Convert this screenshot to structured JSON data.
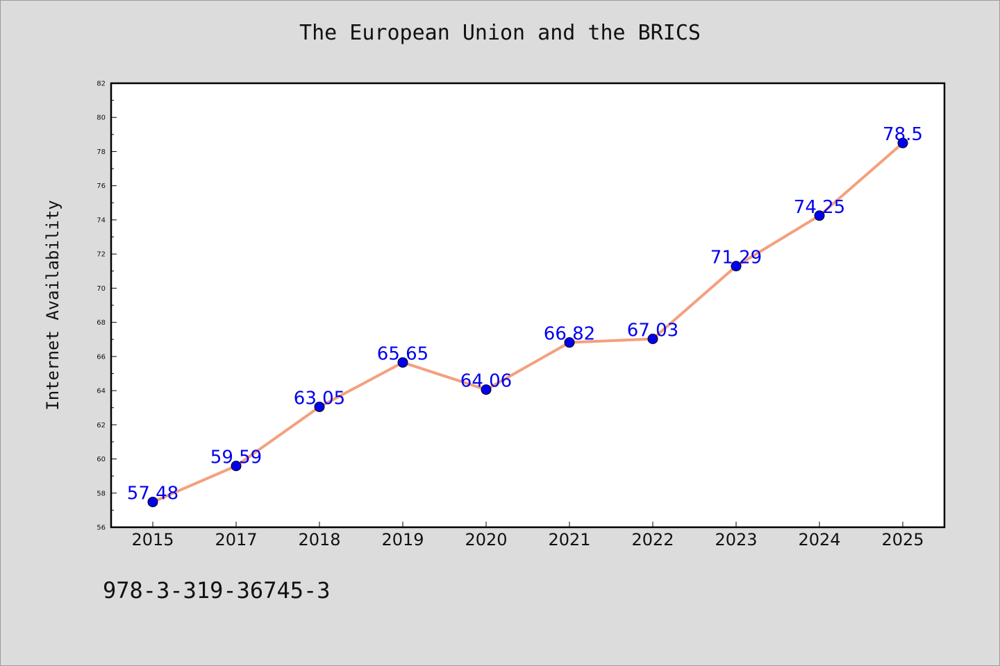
{
  "chart_data": {
    "type": "line",
    "title": "The European Union and the BRICS",
    "xlabel": "",
    "ylabel": "Internet Availability",
    "categories": [
      "2015",
      "2017",
      "2018",
      "2019",
      "2020",
      "2021",
      "2022",
      "2023",
      "2024",
      "2025"
    ],
    "series": [
      {
        "values": [
          57.48,
          59.59,
          63.05,
          65.65,
          64.06,
          66.82,
          67.03,
          71.29,
          74.25,
          78.5
        ],
        "labels": [
          "57.48",
          "59.59",
          "63.05",
          "65.65",
          "64.06",
          "66.82",
          "67.03",
          "71.29",
          "74.25",
          "78.5"
        ],
        "line_color": "#f4a07e",
        "marker_color": "#0000ee",
        "label_color": "#0000ee"
      }
    ],
    "ylim": [
      56,
      82
    ],
    "yticks": [
      56,
      58,
      60,
      62,
      64,
      66,
      68,
      70,
      72,
      74,
      76,
      78,
      80,
      82
    ],
    "grid": false,
    "legend": "none"
  },
  "footnote": "978-3-319-36745-3"
}
